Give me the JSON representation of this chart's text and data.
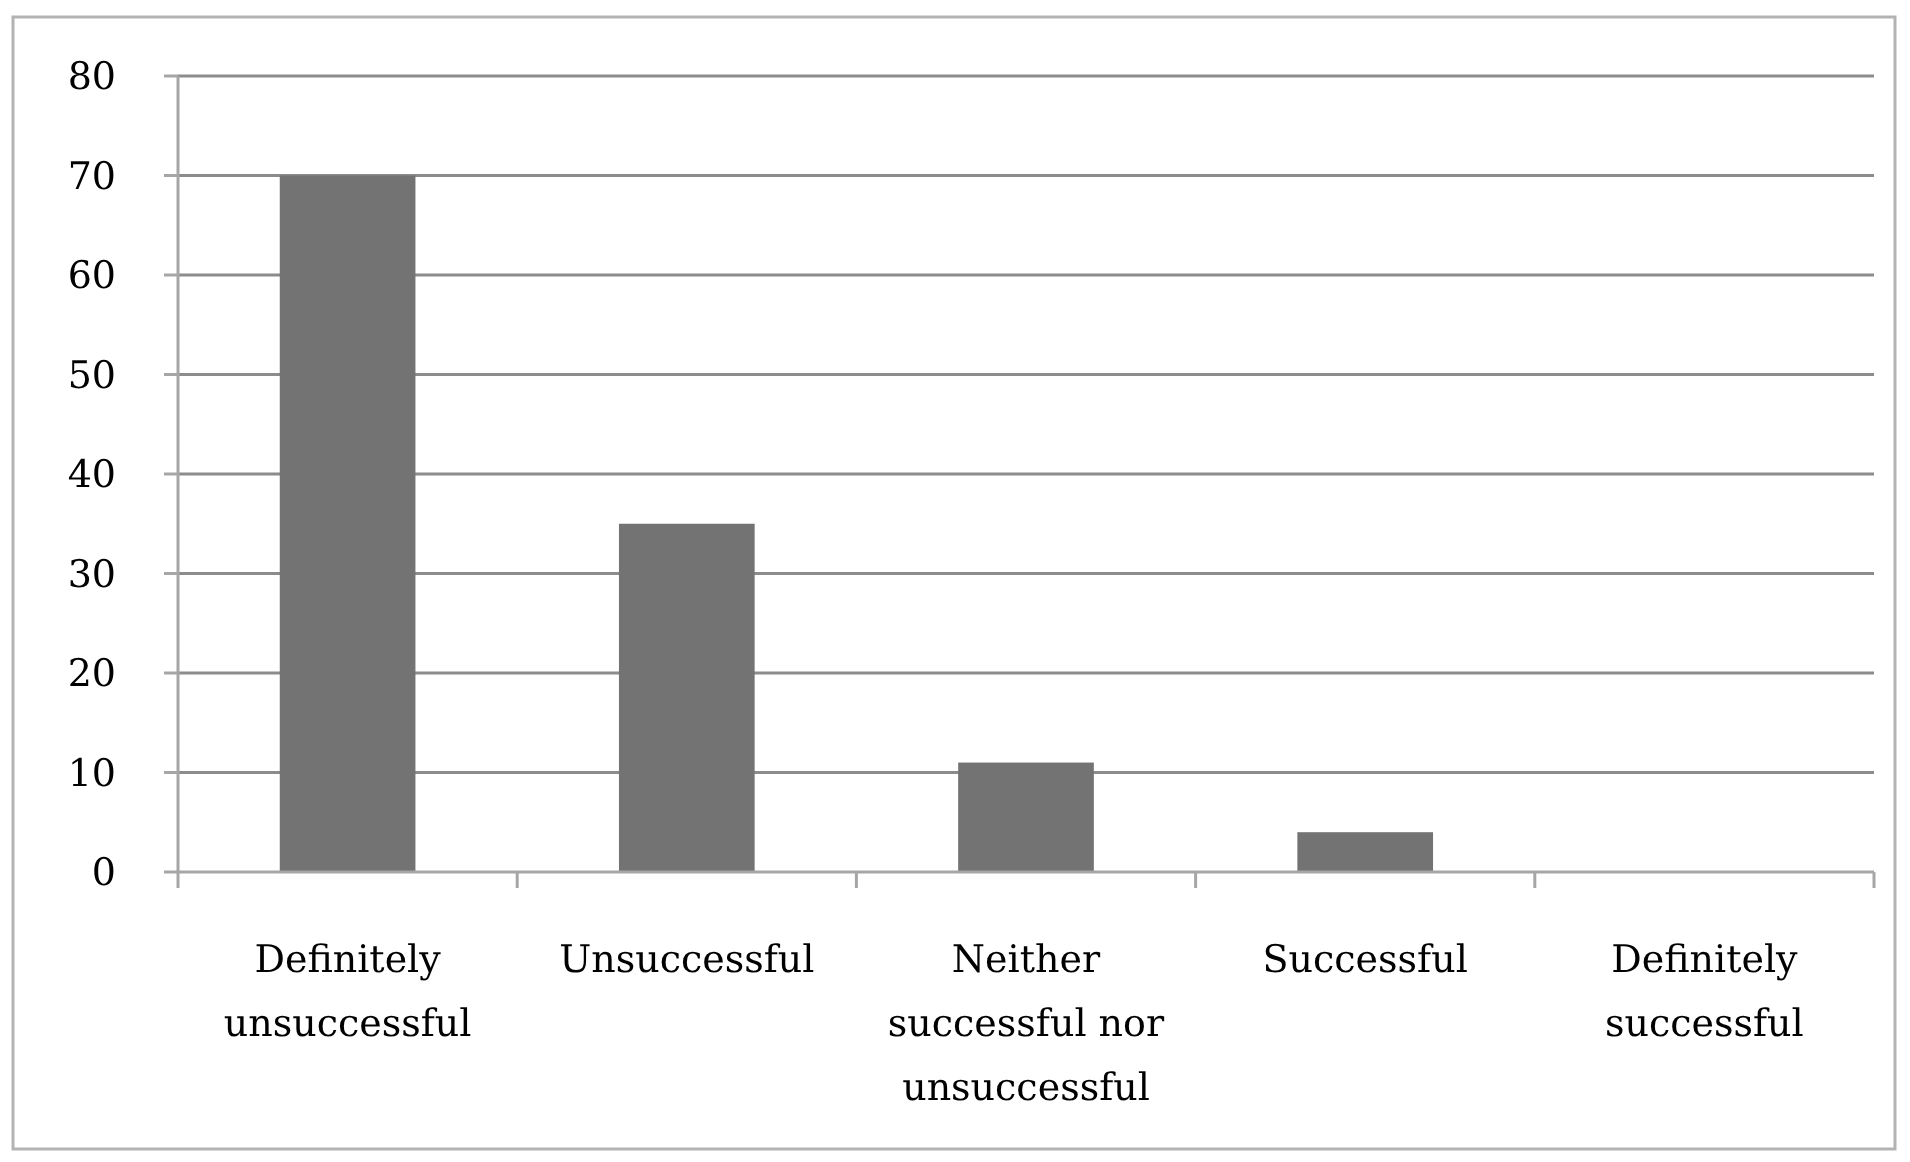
{
  "chart_data": {
    "type": "bar",
    "categories": [
      "Definitely unsuccessful",
      "Unsuccessful",
      "Neither successful nor unsuccessful",
      "Successful",
      "Definitely successful"
    ],
    "values": [
      70,
      35,
      11,
      4,
      0
    ],
    "color": "#737373",
    "ylim": [
      0,
      80
    ],
    "yticks": [
      0,
      10,
      20,
      30,
      40,
      50,
      60,
      70,
      80
    ],
    "grid": "y"
  }
}
